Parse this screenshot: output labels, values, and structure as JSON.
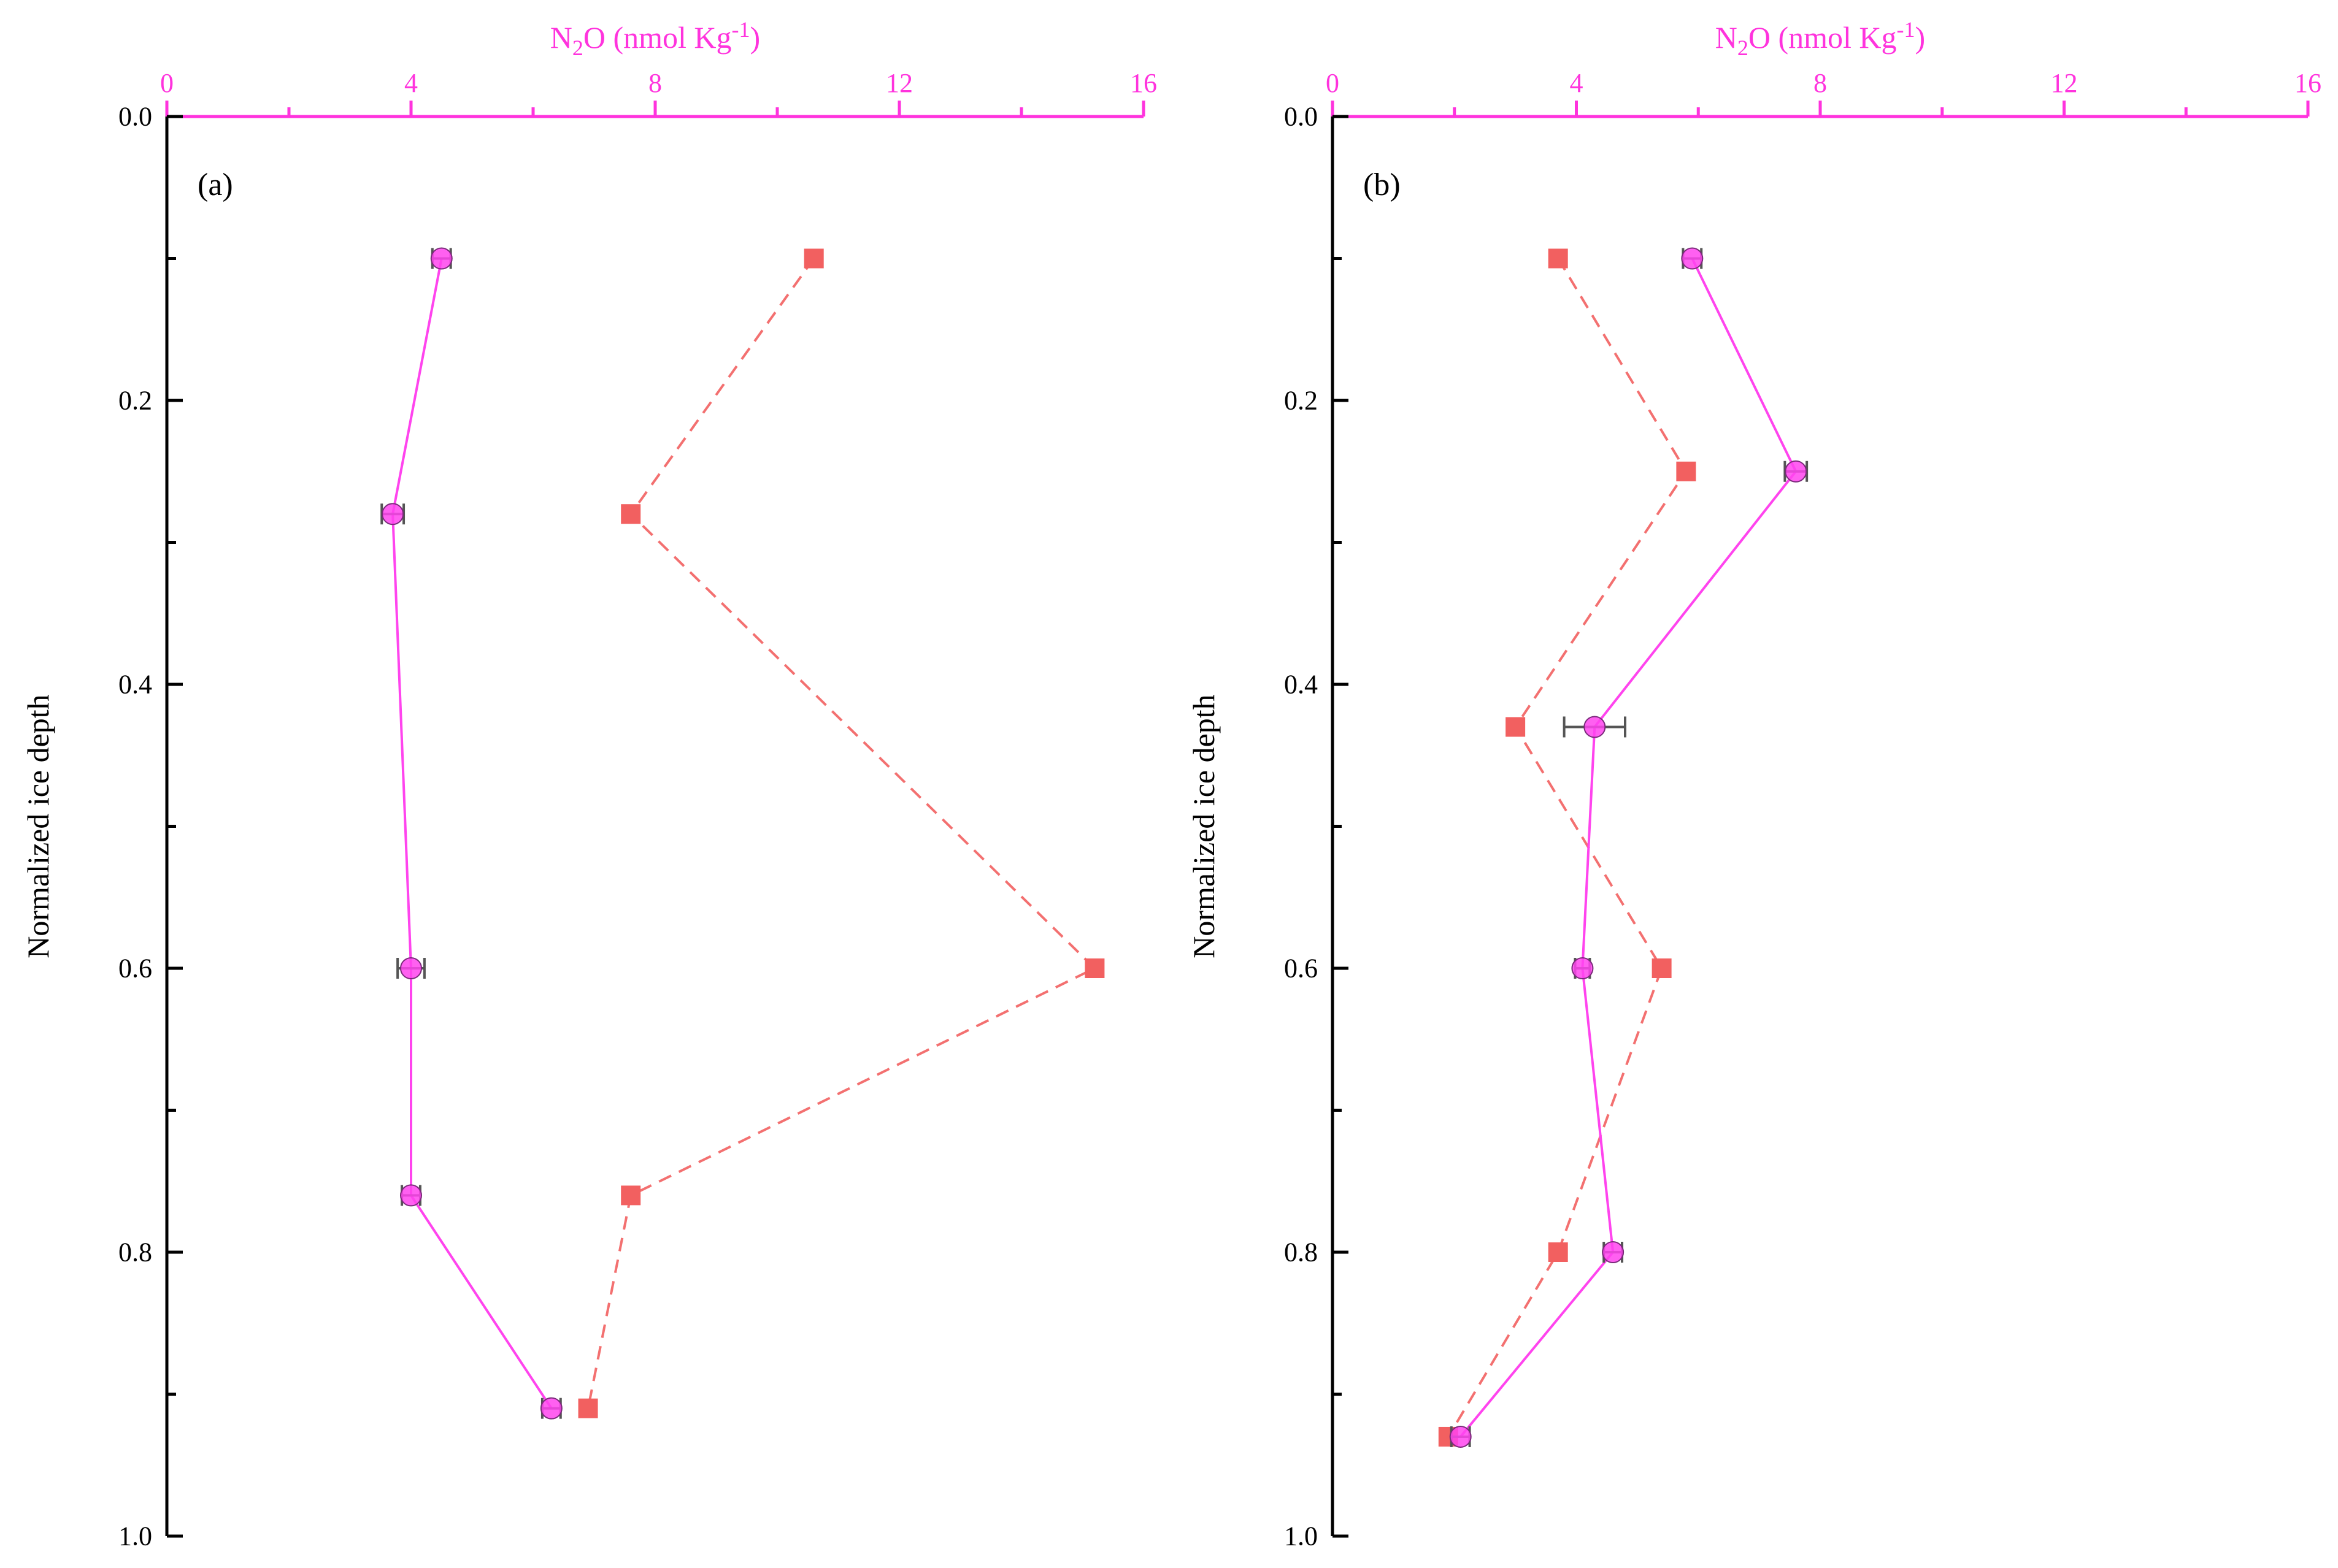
{
  "figure": {
    "colors": {
      "n2o_axis": "#ff33dd",
      "depth_axis": "#000000",
      "series_measured": "#ff44ee",
      "series_squares": "#f26060",
      "error_bar": "#555555"
    }
  },
  "chart_data": [
    {
      "type": "line",
      "panel_label": "(a)",
      "xlabel": "N₂O (nmol Kg⁻¹)",
      "ylabel": "Normalized ice depth",
      "xlim": [
        0,
        16
      ],
      "ylim": [
        0.0,
        1.0
      ],
      "y_inverted": true,
      "x_axis_position": "top",
      "xticks": [
        0,
        4,
        8,
        12,
        16
      ],
      "yticks": [
        0.0,
        0.2,
        0.4,
        0.6,
        0.8,
        1.0
      ],
      "xtick_labels": [
        "0",
        "4",
        "8",
        "12",
        "16"
      ],
      "ytick_labels": [
        "0.0",
        "0.2",
        "0.4",
        "0.6",
        "0.8",
        "1.0"
      ],
      "grid": false,
      "series": [
        {
          "marker": "circle",
          "line": "solid",
          "points": [
            {
              "x": 4.5,
              "y": 0.1,
              "err": 0.15
            },
            {
              "x": 3.7,
              "y": 0.28,
              "err": 0.18
            },
            {
              "x": 4.0,
              "y": 0.6,
              "err": 0.22
            },
            {
              "x": 4.0,
              "y": 0.76,
              "err": 0.15
            },
            {
              "x": 6.3,
              "y": 0.91,
              "err": 0.15
            }
          ]
        },
        {
          "marker": "square",
          "line": "dashed",
          "points": [
            {
              "x": 10.6,
              "y": 0.1
            },
            {
              "x": 7.6,
              "y": 0.28
            },
            {
              "x": 15.2,
              "y": 0.6
            },
            {
              "x": 7.6,
              "y": 0.76
            },
            {
              "x": 6.9,
              "y": 0.91
            }
          ]
        }
      ]
    },
    {
      "type": "line",
      "panel_label": "(b)",
      "xlabel": "N₂O (nmol Kg⁻¹)",
      "ylabel": "Normalized ice depth",
      "xlim": [
        0,
        16
      ],
      "ylim": [
        0.0,
        1.0
      ],
      "y_inverted": true,
      "x_axis_position": "top",
      "xticks": [
        0,
        4,
        8,
        12,
        16
      ],
      "yticks": [
        0.0,
        0.2,
        0.4,
        0.6,
        0.8,
        1.0
      ],
      "xtick_labels": [
        "0",
        "4",
        "8",
        "12",
        "16"
      ],
      "ytick_labels": [
        "0.0",
        "0.2",
        "0.4",
        "0.6",
        "0.8",
        "1.0"
      ],
      "grid": false,
      "series": [
        {
          "marker": "circle",
          "line": "solid",
          "points": [
            {
              "x": 5.9,
              "y": 0.1,
              "err": 0.15
            },
            {
              "x": 7.6,
              "y": 0.25,
              "err": 0.18
            },
            {
              "x": 4.3,
              "y": 0.43,
              "err": 0.5
            },
            {
              "x": 4.1,
              "y": 0.6,
              "err": 0.12
            },
            {
              "x": 4.6,
              "y": 0.8,
              "err": 0.15
            },
            {
              "x": 2.1,
              "y": 0.93,
              "err": 0.15
            }
          ]
        },
        {
          "marker": "square",
          "line": "dashed",
          "points": [
            {
              "x": 3.7,
              "y": 0.1
            },
            {
              "x": 5.8,
              "y": 0.25
            },
            {
              "x": 3.0,
              "y": 0.43
            },
            {
              "x": 5.4,
              "y": 0.6
            },
            {
              "x": 3.7,
              "y": 0.8
            },
            {
              "x": 1.9,
              "y": 0.93
            }
          ]
        }
      ]
    }
  ]
}
